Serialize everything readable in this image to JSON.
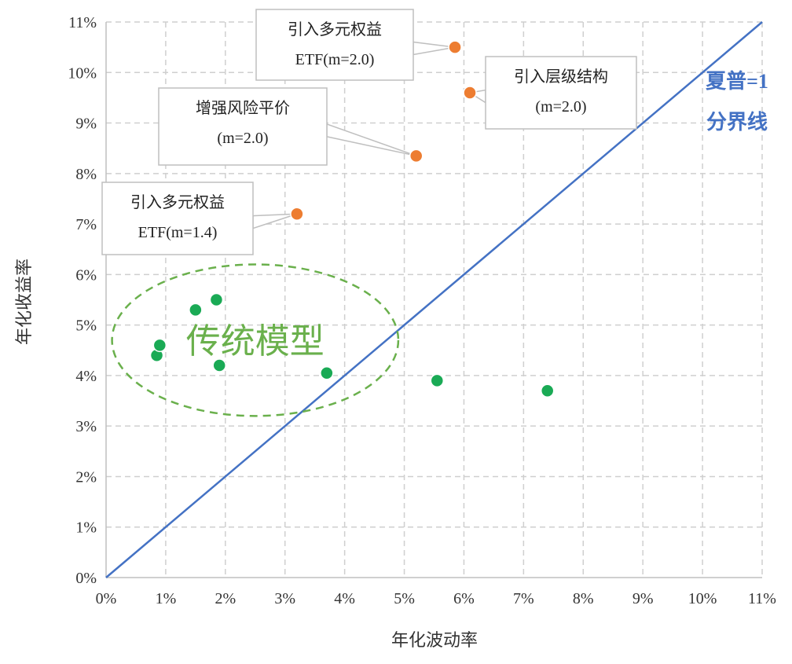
{
  "chart_data": {
    "type": "scatter",
    "xlabel": "年化波动率",
    "ylabel": "年化收益率",
    "xlim": [
      0,
      11
    ],
    "ylim": [
      0,
      11
    ],
    "x_ticks": [
      "0%",
      "1%",
      "2%",
      "3%",
      "4%",
      "5%",
      "6%",
      "7%",
      "8%",
      "9%",
      "10%",
      "11%"
    ],
    "y_ticks": [
      "0%",
      "1%",
      "2%",
      "3%",
      "4%",
      "5%",
      "6%",
      "7%",
      "8%",
      "9%",
      "10%",
      "11%"
    ],
    "grid": true,
    "series": [
      {
        "color": "#ed7d31",
        "points": [
          {
            "x": 5.85,
            "y": 10.5,
            "label_lines": [
              "引入多元权益",
              "ETF(m=2.0)"
            ]
          },
          {
            "x": 6.1,
            "y": 9.6,
            "label_lines": [
              "引入层级结构",
              "(m=2.0)"
            ]
          },
          {
            "x": 5.2,
            "y": 8.35,
            "label_lines": [
              "增强风险平价",
              "(m=2.0)"
            ]
          },
          {
            "x": 3.2,
            "y": 7.2,
            "label_lines": [
              "引入多元权益",
              "ETF(m=1.4)"
            ]
          }
        ]
      },
      {
        "color": "#1aaa55",
        "points": [
          {
            "x": 0.85,
            "y": 4.4
          },
          {
            "x": 0.9,
            "y": 4.6
          },
          {
            "x": 1.5,
            "y": 5.3
          },
          {
            "x": 1.85,
            "y": 5.5
          },
          {
            "x": 1.9,
            "y": 4.2
          },
          {
            "x": 3.7,
            "y": 4.05
          },
          {
            "x": 5.55,
            "y": 3.9
          },
          {
            "x": 7.4,
            "y": 3.7
          }
        ]
      }
    ],
    "reference_line": {
      "from": [
        0,
        0
      ],
      "to": [
        11,
        11
      ],
      "color": "#4472c4",
      "label_lines": [
        "夏普=1",
        "分界线"
      ]
    },
    "cluster": {
      "label": "传统模型",
      "center": [
        2.5,
        4.7
      ],
      "radius_x": 2.4,
      "radius_y": 1.5,
      "color": "#6ab04c"
    }
  }
}
